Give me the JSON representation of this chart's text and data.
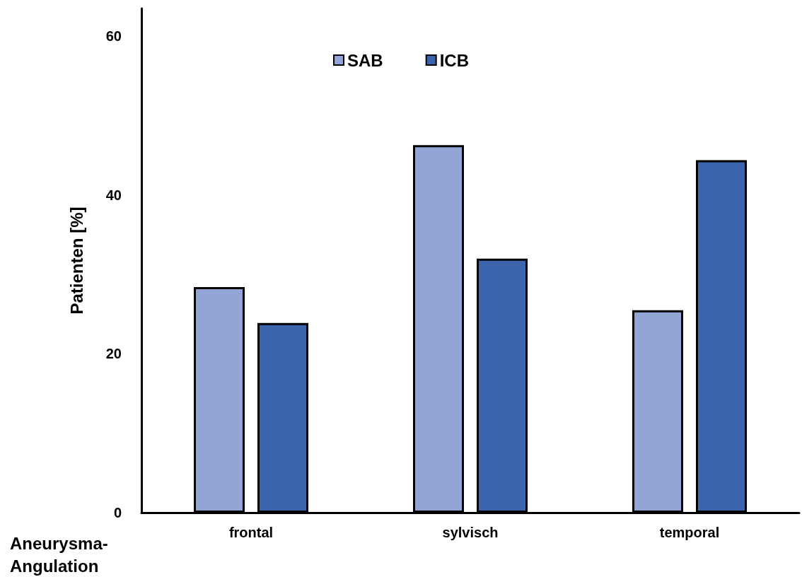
{
  "chart_data": {
    "type": "bar",
    "ylabel": "Patienten [%]",
    "xlabel": "Aneurysma-Angulation",
    "categories": [
      "frontal",
      "sylvisch",
      "temporal"
    ],
    "series": [
      {
        "name": "SAB",
        "color": "#92a5d5",
        "values": [
          28.4,
          46.3,
          25.5
        ]
      },
      {
        "name": "ICB",
        "color": "#3d65ad",
        "values": [
          23.9,
          32.0,
          44.4
        ]
      }
    ],
    "ylim": [
      0,
      63.5
    ],
    "yticks": [
      0,
      20,
      40,
      60
    ],
    "grid": false,
    "legend": "top"
  }
}
